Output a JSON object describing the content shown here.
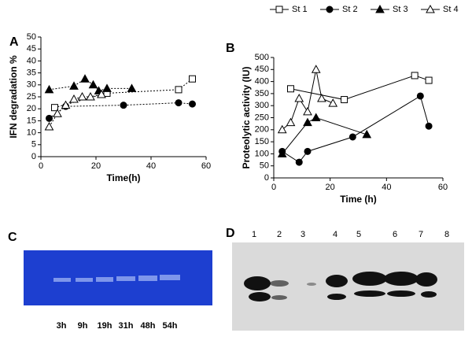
{
  "chart_data": [
    {
      "type": "line",
      "panel": "A",
      "y_label": "IFN degradation %",
      "x_label": "Time(h)",
      "xlim": [
        0,
        60
      ],
      "xticks": [
        0,
        20,
        40,
        60
      ],
      "ylim": [
        0,
        50
      ],
      "yticks": [
        0,
        5,
        10,
        15,
        20,
        25,
        30,
        35,
        40,
        45,
        50
      ],
      "line_style": "dotted",
      "series": [
        {
          "marker": "square-open",
          "color": "#000000",
          "x": [
            5,
            24,
            50,
            55
          ],
          "values": [
            20.5,
            26.5,
            28,
            32.5
          ]
        },
        {
          "marker": "circle-filled",
          "color": "#000000",
          "x": [
            3,
            9,
            30,
            50,
            55
          ],
          "values": [
            16,
            21,
            21.5,
            22.5,
            22
          ]
        },
        {
          "marker": "triangle-filled",
          "color": "#000000",
          "x": [
            3,
            12,
            16,
            19,
            21,
            24,
            33
          ],
          "values": [
            28,
            29.5,
            32.5,
            30,
            27.5,
            28.5,
            28.5
          ]
        },
        {
          "marker": "triangle-open",
          "color": "#000000",
          "x": [
            3,
            6,
            9,
            12,
            15,
            18,
            22
          ],
          "values": [
            12.5,
            18,
            21.5,
            24,
            25,
            25,
            26
          ]
        }
      ]
    },
    {
      "type": "line",
      "panel": "B",
      "y_label": "Proteolytic activity (IU)",
      "x_label": "Time (h)",
      "xlim": [
        0,
        60
      ],
      "xticks": [
        0,
        20,
        40,
        60
      ],
      "ylim": [
        0,
        500
      ],
      "yticks": [
        0,
        50,
        100,
        150,
        200,
        250,
        300,
        350,
        400,
        450,
        500
      ],
      "line_style": "solid",
      "series": [
        {
          "name": "St 1",
          "marker": "square-open",
          "color": "#000000",
          "x": [
            6,
            25,
            50,
            55
          ],
          "values": [
            370,
            325,
            425,
            405
          ]
        },
        {
          "name": "St 2",
          "marker": "circle-filled",
          "color": "#000000",
          "x": [
            3,
            9,
            12,
            28,
            52,
            55
          ],
          "values": [
            110,
            65,
            110,
            170,
            340,
            215
          ]
        },
        {
          "name": "St 3",
          "marker": "triangle-filled",
          "color": "#000000",
          "x": [
            3,
            12,
            15,
            33
          ],
          "values": [
            100,
            230,
            250,
            180
          ]
        },
        {
          "name": "St 4",
          "marker": "triangle-open",
          "color": "#000000",
          "x": [
            3,
            6,
            9,
            12,
            15,
            17,
            21
          ],
          "values": [
            200,
            230,
            330,
            275,
            450,
            330,
            310
          ]
        }
      ]
    }
  ],
  "gels": [
    {
      "panel": "C",
      "lanes": [
        "3h",
        "9h",
        "19h",
        "31h",
        "48h",
        "54h"
      ]
    },
    {
      "panel": "D",
      "lanes": [
        "1",
        "2",
        "3",
        "4",
        "5",
        "6",
        "7",
        "8"
      ]
    }
  ]
}
